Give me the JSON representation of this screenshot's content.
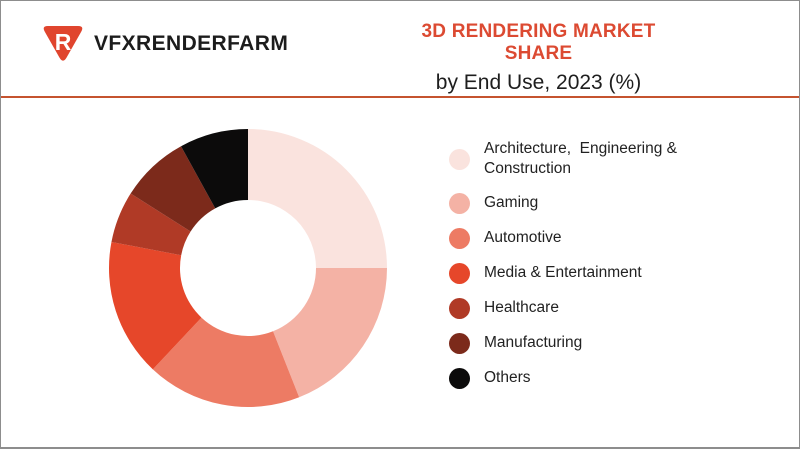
{
  "header": {
    "brand": {
      "name": "VFXRENDERFARM",
      "logo_letter": "R",
      "logo_color": "#e0452e"
    },
    "title": "3D RENDERING MARKET SHARE",
    "subtitle": "by End Use, 2023 (%)",
    "title_color": "#dc4a32",
    "divider_color": "#c5532f"
  },
  "chart_data": {
    "type": "pie",
    "subtype": "donut",
    "title": "3D RENDERING MARKET SHARE",
    "subtitle": "by End Use, 2023 (%)",
    "unit": "%",
    "start_angle_deg": 0,
    "direction": "clockwise",
    "inner_radius_ratio": 0.49,
    "legend_position": "right",
    "values_labeled_on_chart": false,
    "segments": [
      {
        "label": "Architecture,  Engineering & Construction",
        "value": 25,
        "color": "#fae3de"
      },
      {
        "label": "Gaming",
        "value": 19,
        "color": "#f4b2a5"
      },
      {
        "label": "Automotive",
        "value": 18,
        "color": "#ed7b64"
      },
      {
        "label": "Media & Entertainment",
        "value": 16,
        "color": "#e6472a"
      },
      {
        "label": "Healthcare",
        "value": 6,
        "color": "#b03a26"
      },
      {
        "label": "Manufacturing",
        "value": 8,
        "color": "#7c2a1b"
      },
      {
        "label": "Others",
        "value": 8,
        "color": "#0c0b0b"
      }
    ]
  }
}
